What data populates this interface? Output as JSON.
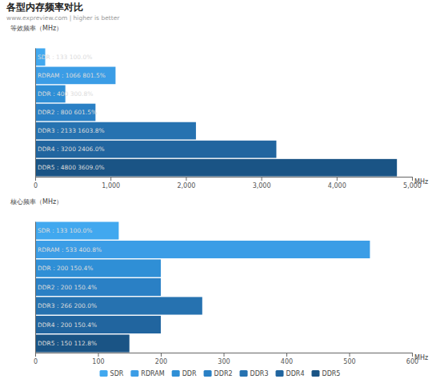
{
  "chart_data": [
    {
      "type": "bar",
      "orientation": "horizontal",
      "title": "各型内存频率对比",
      "subtitle": "www.expreview.com | higher is better",
      "ylabel": "等效频率（MHz）",
      "xlabel": "MHz",
      "categories": [
        "SDR",
        "RDRAM",
        "DDR",
        "DDR2",
        "DDR3",
        "DDR4",
        "DDR5"
      ],
      "values": [
        133,
        1066,
        400,
        800,
        2133,
        3200,
        4800
      ],
      "value_labels": [
        "SDR : 133  100.0%",
        "RDRAM : 1066  801.5%",
        "DDR : 400  300.8%",
        "DDR2 : 800  601.5%",
        "DDR3 : 2133  1603.8%",
        "DDR4 : 3200  2406.0%",
        "DDR5 : 4800  3609.0%"
      ],
      "colors": [
        "#41a8ef",
        "#3b9de6",
        "#2f8fd6",
        "#2a80c5",
        "#2672b0",
        "#21659f",
        "#1a5485"
      ],
      "data_labels": true,
      "tick_labels": "x",
      "xlim": [
        0,
        5000
      ],
      "xticks": [
        0,
        {
          "value": 1000,
          "label": "1,000"
        },
        {
          "value": 2000,
          "label": "2,000"
        },
        {
          "value": 3000,
          "label": "3,000"
        },
        {
          "value": 4000,
          "label": "4,000"
        },
        {
          "value": 5000,
          "label": "5,000"
        }
      ]
    },
    {
      "type": "bar",
      "orientation": "horizontal",
      "ylabel": "核心频率（MHz）",
      "xlabel": "MHz",
      "categories": [
        "SDR",
        "RDRAM",
        "DDR",
        "DDR2",
        "DDR3",
        "DDR4",
        "DDR5"
      ],
      "values": [
        133,
        533,
        200,
        200,
        266,
        200,
        150
      ],
      "value_labels": [
        "SDR : 133  100.0%",
        "RDRAM : 533  400.8%",
        "DDR : 200  150.4%",
        "DDR2 : 200  150.4%",
        "DDR3 : 266  200.0%",
        "DDR4 : 200  150.4%",
        "DDR5 : 150  112.8%"
      ],
      "colors": [
        "#41a8ef",
        "#3b9de6",
        "#2f8fd6",
        "#2a80c5",
        "#2672b0",
        "#21659f",
        "#1a5485"
      ],
      "data_labels": true,
      "tick_labels": "x",
      "legend": "bottom",
      "xlim": [
        0,
        600
      ],
      "xticks": [
        0,
        100,
        200,
        300,
        400,
        500,
        600
      ]
    }
  ]
}
